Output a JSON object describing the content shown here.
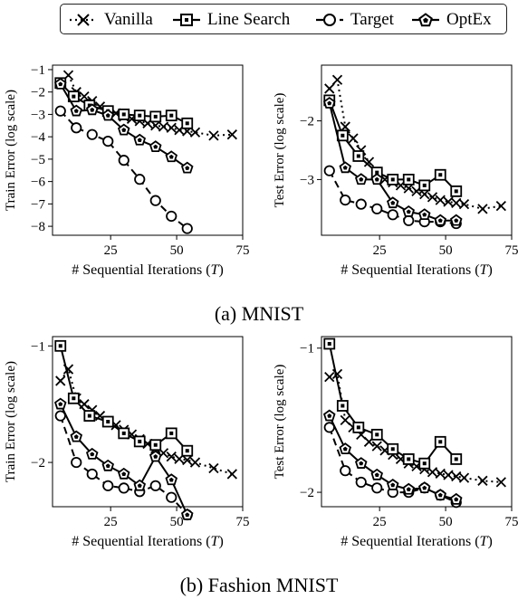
{
  "legend": {
    "items": [
      {
        "label": "Vanilla",
        "marker": "x",
        "dash": "2,4"
      },
      {
        "label": "Line Search",
        "marker": "square",
        "dash": ""
      },
      {
        "label": "Target",
        "marker": "circle",
        "dash": "8,5"
      },
      {
        "label": "OptEx",
        "marker": "pentagon",
        "dash": ""
      }
    ]
  },
  "captions": {
    "a": "(a) MNIST",
    "b": "(b) Fashion MNIST"
  },
  "chart_data": [
    {
      "type": "line",
      "xlabel": "# Sequential Iterations (T)",
      "ylabel": "Train Error (log scale)",
      "xlim": [
        3,
        75
      ],
      "ylim": [
        -8.4,
        -0.8
      ],
      "xticks": [
        25,
        50,
        75
      ],
      "yticks": [
        -1,
        -2,
        -3,
        -4,
        -5,
        -6,
        -7,
        -8
      ],
      "ytick_labels": [
        "−1",
        "−2",
        "−3",
        "−4",
        "−5",
        "−6",
        "−7",
        "−8"
      ],
      "series": [
        {
          "name": "Vanilla",
          "x": [
            6,
            9,
            12,
            15,
            18,
            21,
            24,
            27,
            30,
            33,
            36,
            39,
            42,
            45,
            48,
            51,
            54,
            57,
            64,
            71
          ],
          "y": [
            -1.6,
            -1.25,
            -2.0,
            -2.2,
            -2.4,
            -2.65,
            -2.85,
            -2.95,
            -3.1,
            -3.2,
            -3.3,
            -3.4,
            -3.5,
            -3.55,
            -3.6,
            -3.7,
            -3.75,
            -3.8,
            -3.95,
            -3.9
          ]
        },
        {
          "name": "Line Search",
          "x": [
            6,
            11,
            17,
            24,
            30,
            36,
            42,
            48,
            54
          ],
          "y": [
            -1.6,
            -2.2,
            -2.6,
            -2.85,
            -3.0,
            -3.05,
            -3.1,
            -3.05,
            -3.4
          ]
        },
        {
          "name": "Target",
          "x": [
            6,
            12,
            18,
            24,
            30,
            36,
            42,
            48,
            54
          ],
          "y": [
            -2.85,
            -3.6,
            -3.9,
            -4.2,
            -5.05,
            -5.9,
            -6.85,
            -7.55,
            -8.1
          ]
        },
        {
          "name": "OptEx",
          "x": [
            6,
            12,
            18,
            24,
            30,
            36,
            42,
            48,
            54
          ],
          "y": [
            -1.65,
            -2.85,
            -2.8,
            -3.05,
            -3.7,
            -4.15,
            -4.45,
            -4.9,
            -5.4
          ]
        }
      ]
    },
    {
      "type": "line",
      "xlabel": "# Sequential Iterations (T)",
      "ylabel": "Test Error (log scale)",
      "xlim": [
        3,
        75
      ],
      "ylim": [
        -3.95,
        -1.05
      ],
      "xticks": [
        25,
        50,
        75
      ],
      "yticks": [
        -2,
        -3
      ],
      "ytick_labels": [
        "−2",
        "−3"
      ],
      "series": [
        {
          "name": "Vanilla",
          "x": [
            6,
            9,
            12,
            15,
            18,
            21,
            24,
            27,
            30,
            33,
            36,
            39,
            42,
            45,
            48,
            51,
            54,
            57,
            64,
            71
          ],
          "y": [
            -1.45,
            -1.3,
            -2.1,
            -2.3,
            -2.5,
            -2.7,
            -2.9,
            -3.0,
            -3.05,
            -3.1,
            -3.15,
            -3.2,
            -3.25,
            -3.3,
            -3.35,
            -3.38,
            -3.4,
            -3.42,
            -3.5,
            -3.45
          ]
        },
        {
          "name": "Line Search",
          "x": [
            6,
            11,
            17,
            24,
            30,
            36,
            42,
            48,
            54
          ],
          "y": [
            -1.65,
            -2.25,
            -2.6,
            -2.88,
            -3.0,
            -3.0,
            -3.1,
            -2.92,
            -3.2
          ]
        },
        {
          "name": "Target",
          "x": [
            6,
            12,
            18,
            24,
            30,
            36,
            42,
            48,
            54
          ],
          "y": [
            -2.85,
            -3.35,
            -3.42,
            -3.5,
            -3.6,
            -3.7,
            -3.72,
            -3.72,
            -3.75
          ]
        },
        {
          "name": "OptEx",
          "x": [
            6,
            12,
            18,
            24,
            30,
            36,
            42,
            48,
            54
          ],
          "y": [
            -1.7,
            -2.8,
            -3.0,
            -3.0,
            -3.4,
            -3.55,
            -3.6,
            -3.7,
            -3.7
          ]
        }
      ]
    },
    {
      "type": "line",
      "xlabel": "# Sequential Iterations (T)",
      "ylabel": "Train Error (log scale)",
      "xlim": [
        3,
        75
      ],
      "ylim": [
        -2.38,
        -0.92
      ],
      "xticks": [
        25,
        50,
        75
      ],
      "yticks": [
        -1,
        -2
      ],
      "ytick_labels": [
        "−1",
        "−2"
      ],
      "series": [
        {
          "name": "Vanilla",
          "x": [
            6,
            9,
            12,
            15,
            18,
            21,
            24,
            27,
            30,
            33,
            36,
            39,
            42,
            45,
            48,
            51,
            54,
            57,
            64,
            71
          ],
          "y": [
            -1.3,
            -1.2,
            -1.45,
            -1.5,
            -1.55,
            -1.6,
            -1.65,
            -1.68,
            -1.72,
            -1.76,
            -1.8,
            -1.84,
            -1.88,
            -1.92,
            -1.95,
            -1.97,
            -1.98,
            -2.0,
            -2.05,
            -2.1
          ]
        },
        {
          "name": "Line Search",
          "x": [
            6,
            11,
            17,
            24,
            30,
            36,
            42,
            48,
            54
          ],
          "y": [
            -1.0,
            -1.45,
            -1.6,
            -1.65,
            -1.75,
            -1.82,
            -1.85,
            -1.75,
            -1.9
          ]
        },
        {
          "name": "Target",
          "x": [
            6,
            12,
            18,
            24,
            30,
            36,
            42,
            48,
            54
          ],
          "y": [
            -1.6,
            -2.0,
            -2.1,
            -2.2,
            -2.22,
            -2.25,
            -2.2,
            -2.3,
            -2.45
          ]
        },
        {
          "name": "OptEx",
          "x": [
            6,
            12,
            18,
            24,
            30,
            36,
            42,
            48,
            54
          ],
          "y": [
            -1.5,
            -1.78,
            -1.93,
            -2.03,
            -2.1,
            -2.2,
            -1.95,
            -2.15,
            -2.45
          ]
        }
      ]
    },
    {
      "type": "line",
      "xlabel": "# Sequential Iterations (T)",
      "ylabel": "Test Error (log scale)",
      "xlim": [
        3,
        75
      ],
      "ylim": [
        -2.1,
        -0.92
      ],
      "xticks": [
        25,
        50,
        75
      ],
      "yticks": [
        -1,
        -2
      ],
      "ytick_labels": [
        "−1",
        "−2"
      ],
      "series": [
        {
          "name": "Vanilla",
          "x": [
            6,
            9,
            12,
            15,
            18,
            21,
            24,
            27,
            30,
            33,
            36,
            39,
            42,
            45,
            48,
            51,
            54,
            57,
            64,
            71
          ],
          "y": [
            -1.2,
            -1.18,
            -1.5,
            -1.55,
            -1.6,
            -1.65,
            -1.68,
            -1.71,
            -1.74,
            -1.77,
            -1.8,
            -1.82,
            -1.84,
            -1.86,
            -1.87,
            -1.88,
            -1.89,
            -1.9,
            -1.92,
            -1.93
          ]
        },
        {
          "name": "Line Search",
          "x": [
            6,
            11,
            17,
            24,
            30,
            36,
            42,
            48,
            54
          ],
          "y": [
            -0.97,
            -1.4,
            -1.55,
            -1.6,
            -1.7,
            -1.77,
            -1.8,
            -1.65,
            -1.77
          ]
        },
        {
          "name": "Target",
          "x": [
            6,
            12,
            18,
            24,
            30,
            36,
            42,
            48,
            54
          ],
          "y": [
            -1.55,
            -1.85,
            -1.93,
            -1.97,
            -2.0,
            -2.0,
            -1.97,
            -2.02,
            -2.07
          ]
        },
        {
          "name": "OptEx",
          "x": [
            6,
            12,
            18,
            24,
            30,
            36,
            42,
            48,
            54
          ],
          "y": [
            -1.47,
            -1.7,
            -1.8,
            -1.88,
            -1.95,
            -1.98,
            -1.97,
            -2.02,
            -2.05
          ]
        }
      ]
    }
  ]
}
